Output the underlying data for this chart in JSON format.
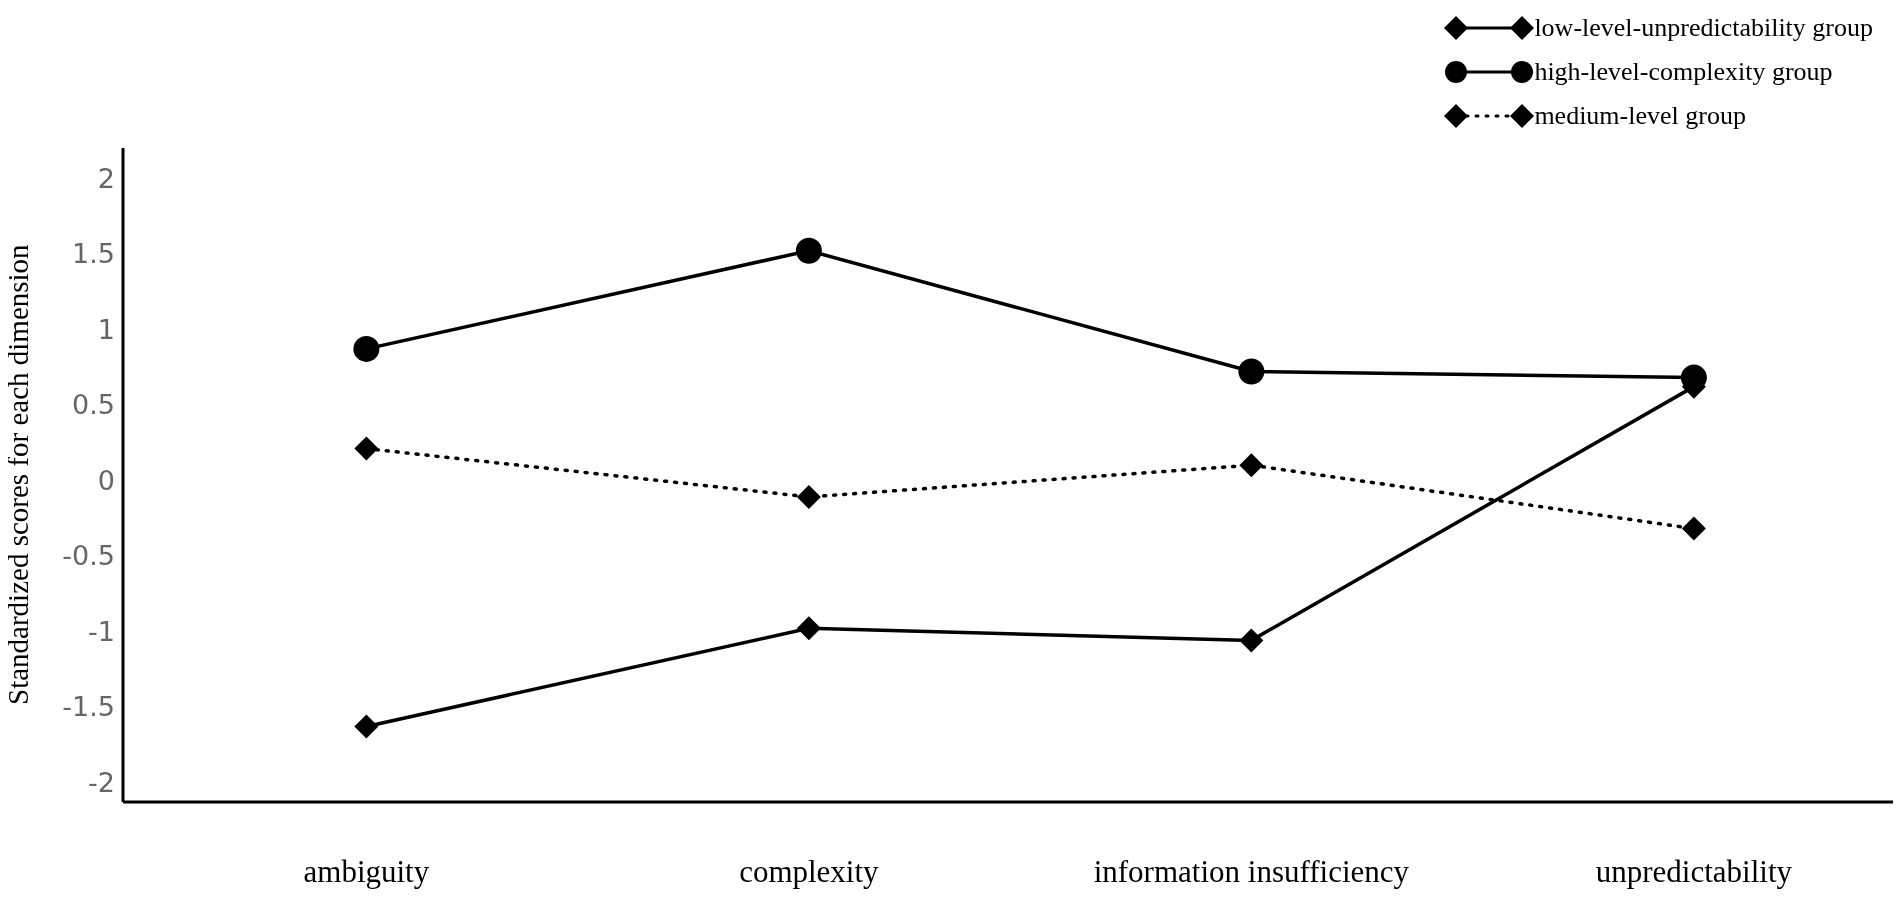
{
  "chart_data": {
    "type": "line",
    "ylabel": "Standardized scores for each dimension",
    "categories": [
      "ambiguity",
      "complexity",
      "information insufficiency",
      "unpredictability"
    ],
    "series": [
      {
        "name": "low-level-unpredictability group",
        "color": "#000000",
        "marker": "diamond",
        "line_style": "solid",
        "values": [
          -1.63,
          -0.98,
          -1.06,
          0.62
        ]
      },
      {
        "name": "high-level-complexity group",
        "color": "#000000",
        "marker": "circle",
        "line_style": "solid",
        "values": [
          0.87,
          1.52,
          0.72,
          0.68
        ]
      },
      {
        "name": "medium-level group",
        "color": "#000000",
        "marker": "diamond",
        "line_style": "dotted",
        "values": [
          0.21,
          -0.11,
          0.1,
          -0.32
        ]
      }
    ],
    "ylim": [
      -2.13,
      2.2
    ],
    "yticks": [
      -2,
      -1.5,
      -1,
      -0.5,
      0,
      0.5,
      1,
      1.5,
      2
    ],
    "grid": false,
    "legend": "top right"
  }
}
